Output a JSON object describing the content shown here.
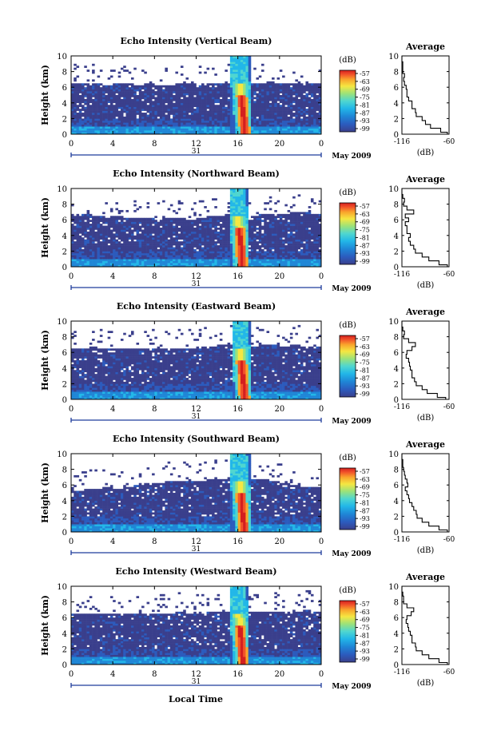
{
  "figure": {
    "xlabel": "Local Time",
    "date_label": "May 2009",
    "day_label": "31",
    "avg_title": "Average",
    "avg_xlabel": "(dB)",
    "cbar_unit": "(dB)",
    "ylabel": "Height (km)"
  },
  "colors": {
    "white": "#ffffff",
    "background_noise": "#3a3f8c",
    "scale": [
      "#3a3f8c",
      "#2c5bbd",
      "#1f86d6",
      "#22b7e8",
      "#4fd6d0",
      "#9be27a",
      "#f5e742",
      "#f9a52c",
      "#f2552a",
      "#d41f1f"
    ]
  },
  "chart_data": [
    {
      "type": "heatmap",
      "title": "Echo Intensity (Vertical Beam)",
      "x_ticks": [
        "0",
        "4",
        "8",
        "12",
        "16",
        "20",
        "0"
      ],
      "xlim": [
        0,
        24
      ],
      "y_ticks": [
        "0",
        "2",
        "4",
        "6",
        "8",
        "10"
      ],
      "ylim": [
        0,
        10
      ],
      "colorbar_ticks": [
        "-57",
        "-63",
        "-69",
        "-75",
        "-81",
        "-87",
        "-93",
        "-99"
      ],
      "echo_top_km": [
        6.4,
        6.4,
        6.4,
        6.3,
        6.4,
        6.4,
        6.3,
        6.4,
        6.3,
        6.3,
        6.5,
        6.4,
        6.3,
        6.4,
        6.5,
        6.6,
        6.6,
        6.6,
        6.5,
        6.5,
        6.5,
        6.5,
        6.5,
        6.5
      ],
      "rain_band": {
        "start_hour": 15.3,
        "end_hour": 17.3,
        "top_km": 10
      },
      "avg_profile": {
        "x_ticks": [
          "-116",
          "-60"
        ],
        "xlim": [
          -116,
          -60
        ],
        "y_ticks": [
          "0",
          "2",
          "4",
          "6",
          "8",
          "10"
        ],
        "ylim": [
          0,
          10
        ],
        "height_km": [
          0,
          0.5,
          1,
          1.5,
          2,
          2.5,
          3,
          3.5,
          4,
          4.5,
          5,
          5.5,
          6,
          6.5,
          7,
          7.5,
          8,
          8.5,
          9,
          9.5,
          10
        ],
        "db": [
          -62,
          -70,
          -82,
          -88,
          -92,
          -99,
          -100,
          -104,
          -104,
          -108,
          -110,
          -110,
          -111,
          -113,
          -114,
          -113,
          -115,
          -115,
          -115,
          -116,
          -116
        ]
      }
    },
    {
      "type": "heatmap",
      "title": "Echo Intensity (Northward Beam)",
      "x_ticks": [
        "0",
        "4",
        "8",
        "12",
        "16",
        "20",
        "0"
      ],
      "xlim": [
        0,
        24
      ],
      "y_ticks": [
        "0",
        "2",
        "4",
        "6",
        "8",
        "10"
      ],
      "ylim": [
        0,
        10
      ],
      "colorbar_ticks": [
        "-57",
        "-63",
        "-69",
        "-75",
        "-81",
        "-87",
        "-93",
        "-99"
      ],
      "echo_top_km": [
        6.7,
        6.8,
        6.4,
        6.2,
        6.4,
        6.2,
        6.3,
        6.3,
        6.1,
        6.3,
        6.2,
        6.1,
        6.3,
        6.5,
        6.6,
        6.8,
        6.8,
        6.6,
        6.8,
        6.8,
        6.7,
        6.9,
        7.0,
        6.8
      ],
      "rain_band": {
        "start_hour": 15.2,
        "end_hour": 17.0,
        "top_km": 10
      },
      "avg_profile": {
        "x_ticks": [
          "-116",
          "-60"
        ],
        "xlim": [
          -116,
          -60
        ],
        "y_ticks": [
          "0",
          "2",
          "4",
          "6",
          "8",
          "10"
        ],
        "ylim": [
          0,
          10
        ],
        "height_km": [
          0,
          0.5,
          1,
          1.5,
          2,
          2.5,
          3,
          3.5,
          4,
          4.5,
          5,
          5.5,
          6,
          6.5,
          7,
          7.5,
          8,
          8.5,
          9,
          9.5,
          10
        ],
        "db": [
          -62,
          -72,
          -84,
          -92,
          -100,
          -102,
          -106,
          -108,
          -106,
          -110,
          -110,
          -112,
          -108,
          -112,
          -102,
          -110,
          -114,
          -113,
          -115,
          -116,
          -116
        ]
      }
    },
    {
      "type": "heatmap",
      "title": "Echo Intensity (Eastward Beam)",
      "x_ticks": [
        "0",
        "4",
        "8",
        "12",
        "16",
        "20",
        "0"
      ],
      "xlim": [
        0,
        24
      ],
      "y_ticks": [
        "0",
        "2",
        "4",
        "6",
        "8",
        "10"
      ],
      "ylim": [
        0,
        10
      ],
      "colorbar_ticks": [
        "-57",
        "-63",
        "-69",
        "-75",
        "-81",
        "-87",
        "-93",
        "-99"
      ],
      "echo_top_km": [
        6.6,
        6.6,
        6.4,
        6.5,
        6.5,
        6.4,
        6.4,
        6.5,
        6.5,
        6.4,
        6.6,
        6.5,
        6.7,
        6.8,
        6.9,
        6.9,
        6.8,
        6.8,
        6.9,
        6.9,
        6.8,
        6.9,
        6.8,
        6.7
      ],
      "rain_band": {
        "start_hour": 15.4,
        "end_hour": 17.2,
        "top_km": 10
      },
      "avg_profile": {
        "x_ticks": [
          "-116",
          "-60"
        ],
        "xlim": [
          -116,
          -60
        ],
        "y_ticks": [
          "0",
          "2",
          "4",
          "6",
          "8",
          "10"
        ],
        "ylim": [
          0,
          10
        ],
        "height_km": [
          0,
          0.5,
          1,
          1.5,
          2,
          2.5,
          3,
          3.5,
          4,
          4.5,
          5,
          5.5,
          6,
          6.5,
          7,
          7.5,
          8,
          8.5,
          9,
          9.5,
          10
        ],
        "db": [
          -64,
          -74,
          -86,
          -92,
          -99,
          -101,
          -104,
          -104,
          -106,
          -107,
          -108,
          -111,
          -110,
          -104,
          -100,
          -108,
          -114,
          -113,
          -115,
          -116,
          -116
        ]
      }
    },
    {
      "type": "heatmap",
      "title": "Echo Intensity (Southward Beam)",
      "x_ticks": [
        "0",
        "4",
        "8",
        "12",
        "16",
        "20",
        "0"
      ],
      "xlim": [
        0,
        24
      ],
      "y_ticks": [
        "0",
        "2",
        "4",
        "6",
        "8",
        "10"
      ],
      "ylim": [
        0,
        10
      ],
      "colorbar_ticks": [
        "-57",
        "-63",
        "-69",
        "-75",
        "-81",
        "-87",
        "-93",
        "-99"
      ],
      "echo_top_km": [
        5.2,
        5.6,
        5.4,
        5.7,
        5.5,
        5.8,
        6.0,
        6.2,
        6.2,
        6.4,
        6.5,
        6.5,
        6.6,
        6.7,
        6.8,
        6.8,
        6.8,
        6.8,
        6.7,
        6.5,
        6.2,
        6.0,
        5.8,
        5.7
      ],
      "rain_band": {
        "start_hour": 15.3,
        "end_hour": 17.2,
        "top_km": 10
      },
      "avg_profile": {
        "x_ticks": [
          "-116",
          "-60"
        ],
        "xlim": [
          -116,
          -60
        ],
        "y_ticks": [
          "0",
          "2",
          "4",
          "6",
          "8",
          "10"
        ],
        "ylim": [
          0,
          10
        ],
        "height_km": [
          0,
          0.5,
          1,
          1.5,
          2,
          2.5,
          3,
          3.5,
          4,
          4.5,
          5,
          5.5,
          6,
          6.5,
          7,
          7.5,
          8,
          8.5,
          9,
          9.5,
          10
        ],
        "db": [
          -62,
          -72,
          -84,
          -92,
          -98,
          -99,
          -102,
          -104,
          -107,
          -108,
          -110,
          -112,
          -109,
          -110,
          -112,
          -113,
          -114,
          -115,
          -115,
          -116,
          -116
        ]
      }
    },
    {
      "type": "heatmap",
      "title": "Echo Intensity (Westward Beam)",
      "x_ticks": [
        "0",
        "4",
        "8",
        "12",
        "16",
        "20",
        "0"
      ],
      "xlim": [
        0,
        24
      ],
      "y_ticks": [
        "0",
        "2",
        "4",
        "6",
        "8",
        "10"
      ],
      "ylim": [
        0,
        10
      ],
      "colorbar_ticks": [
        "-57",
        "-63",
        "-69",
        "-75",
        "-81",
        "-87",
        "-93",
        "-99"
      ],
      "echo_top_km": [
        6.5,
        6.6,
        6.5,
        6.4,
        6.6,
        6.5,
        6.5,
        6.5,
        6.4,
        6.5,
        6.7,
        6.6,
        6.6,
        6.7,
        6.8,
        6.8,
        6.8,
        6.8,
        6.8,
        6.7,
        6.8,
        6.8,
        6.9,
        6.8
      ],
      "rain_band": {
        "start_hour": 15.2,
        "end_hour": 17.1,
        "top_km": 10
      },
      "avg_profile": {
        "x_ticks": [
          "-116",
          "-60"
        ],
        "xlim": [
          -116,
          -60
        ],
        "y_ticks": [
          "0",
          "2",
          "4",
          "6",
          "8",
          "10"
        ],
        "ylim": [
          0,
          10
        ],
        "height_km": [
          0,
          0.5,
          1,
          1.5,
          2,
          2.5,
          3,
          3.5,
          4,
          4.5,
          5,
          5.5,
          6,
          6.5,
          7,
          7.5,
          8,
          8.5,
          9,
          9.5,
          10
        ],
        "db": [
          -62,
          -72,
          -84,
          -92,
          -99,
          -100,
          -104,
          -104,
          -106,
          -108,
          -109,
          -111,
          -110,
          -105,
          -102,
          -110,
          -114,
          -114,
          -115,
          -116,
          -116
        ]
      }
    }
  ]
}
